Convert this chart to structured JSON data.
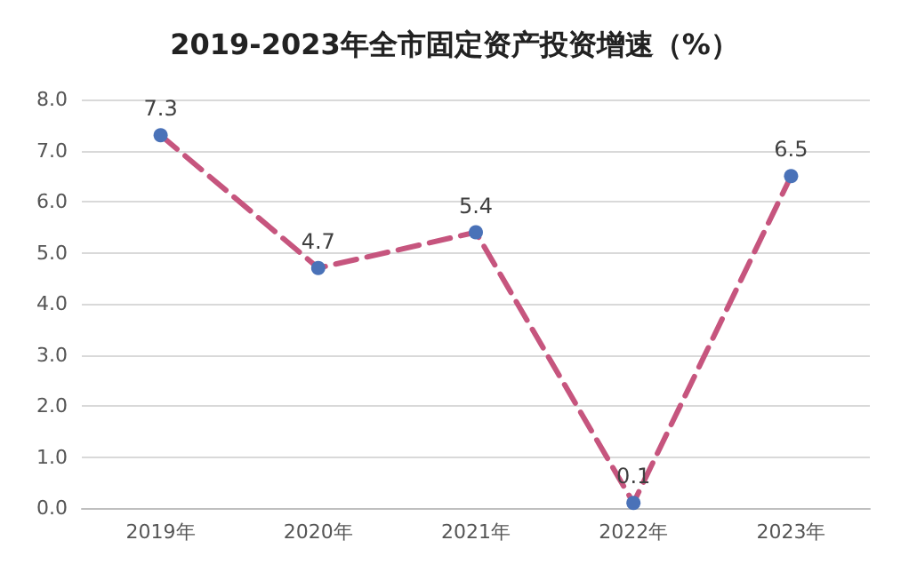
{
  "chart_data": {
    "type": "line",
    "title": "2019-2023年全市固定资产投资增速（%）",
    "categories": [
      "2019年",
      "2020年",
      "2021年",
      "2022年",
      "2023年"
    ],
    "series": [
      {
        "color": "#c6557e",
        "colors": [
          "#4a72b8",
          "#4a72b8",
          "#4a72b8",
          "#4a72b8",
          "#4a72b8"
        ],
        "values": [
          7.3,
          4.7,
          5.4,
          0.1,
          6.5
        ]
      }
    ],
    "ylim": [
      0,
      8
    ],
    "yticks": [
      {
        "value": 0,
        "label": "0.0"
      },
      {
        "value": 1,
        "label": "1.0"
      },
      {
        "value": 2,
        "label": "2.0"
      },
      {
        "value": 3,
        "label": "3.0"
      },
      {
        "value": 4,
        "label": "4.0"
      },
      {
        "value": 5,
        "label": "5.0"
      },
      {
        "value": 6,
        "label": "6.0"
      },
      {
        "value": 7,
        "label": "7.0"
      },
      {
        "value": 8,
        "label": "8.0"
      }
    ],
    "grid": "y",
    "marker": "circle",
    "line_style": "dashed",
    "data_labels": true
  }
}
